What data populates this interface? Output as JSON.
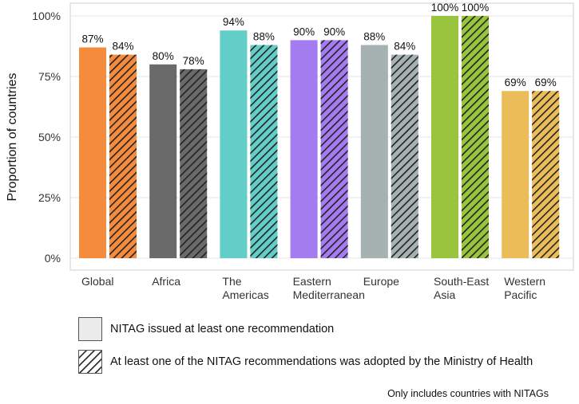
{
  "chart_data": {
    "type": "bar",
    "ylabel": "Proportion of countries",
    "ylim": [
      0,
      100
    ],
    "yticks": [
      0,
      25,
      50,
      75,
      100
    ],
    "ytick_labels": [
      "0%",
      "25%",
      "50%",
      "75%",
      "100%"
    ],
    "categories": [
      [
        "Global"
      ],
      [
        "Africa"
      ],
      [
        "The",
        "Americas"
      ],
      [
        "Eastern",
        "Mediterranean"
      ],
      [
        "Europe"
      ],
      [
        "South-East",
        "Asia"
      ],
      [
        "Western",
        "Pacific"
      ]
    ],
    "colors": [
      "#f58b3c",
      "#6a6a6a",
      "#63cdc8",
      "#a57bf0",
      "#a6b1b2",
      "#99c43d",
      "#ebbd59"
    ],
    "series": [
      {
        "name": "NITAG issued at least one recommendation",
        "pattern": "solid",
        "values": [
          87,
          80,
          94,
          90,
          88,
          100,
          69
        ],
        "labels": [
          "87%",
          "80%",
          "94%",
          "90%",
          "88%",
          "100%",
          "69%"
        ]
      },
      {
        "name": "At least one of the NITAG recommendations was adopted by the Ministry of Health",
        "pattern": "hatched",
        "values": [
          84,
          78,
          88,
          90,
          84,
          100,
          69
        ],
        "labels": [
          "84%",
          "78%",
          "88%",
          "90%",
          "84%",
          "100%",
          "69%"
        ]
      }
    ]
  },
  "legend": {
    "items": [
      "NITAG issued at least one recommendation",
      "At least one of the NITAG recommendations was adopted by the Ministry of Health"
    ]
  },
  "footnote": "Only includes countries with NITAGs"
}
